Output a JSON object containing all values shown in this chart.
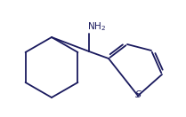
{
  "background_color": "#ffffff",
  "bond_color": "#1a1a5e",
  "text_color": "#1a1a5e",
  "line_width": 1.3,
  "figsize": [
    2.09,
    1.32
  ],
  "dpi": 100,
  "xlim": [
    0,
    209
  ],
  "ylim": [
    0,
    132
  ]
}
